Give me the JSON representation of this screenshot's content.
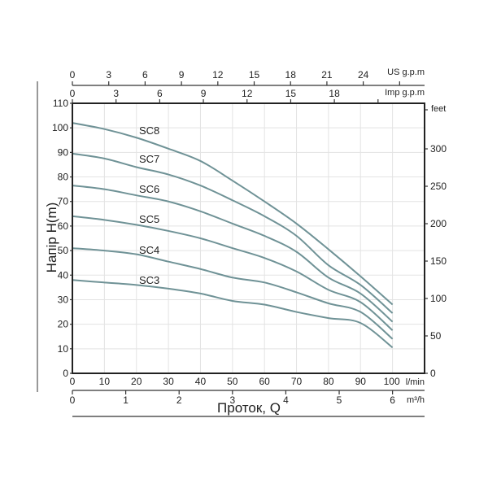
{
  "chart_data": {
    "type": "line",
    "title": "",
    "xlabel": "Проток, Q",
    "ylabel": "Напір H(m)",
    "xlim": [
      0,
      110
    ],
    "ylim": [
      0,
      110
    ],
    "grid": true,
    "legend_position": "inline labels",
    "x_unit": "l/min",
    "x": [
      0,
      10,
      20,
      30,
      40,
      50,
      60,
      70,
      80,
      90,
      100
    ],
    "series": [
      {
        "name": "SC8",
        "values": [
          102,
          99.5,
          96,
          91.5,
          86.5,
          78.5,
          70,
          61,
          50.5,
          39.5,
          28
        ]
      },
      {
        "name": "SC7",
        "values": [
          89.5,
          87.5,
          84,
          81,
          76.5,
          70.5,
          64,
          56,
          44,
          36,
          24.5
        ]
      },
      {
        "name": "SC6",
        "values": [
          76.5,
          75,
          72.5,
          70,
          66,
          61,
          56,
          49.5,
          39,
          32.5,
          21
        ]
      },
      {
        "name": "SC5",
        "values": [
          64,
          62.5,
          60.5,
          58,
          55,
          51,
          47,
          41.5,
          34,
          29,
          17.5
        ]
      },
      {
        "name": "SC4",
        "values": [
          51,
          50,
          48.5,
          45.5,
          42.5,
          39,
          37,
          33,
          28.5,
          25,
          14
        ]
      },
      {
        "name": "SC3",
        "values": [
          38,
          37,
          36,
          34.5,
          32.5,
          29.5,
          28,
          25,
          22.5,
          20.5,
          10.5
        ]
      }
    ],
    "primary_y_axis": {
      "label": "Напір H(m)",
      "ticks": [
        0,
        10,
        20,
        30,
        40,
        50,
        60,
        70,
        80,
        90,
        100,
        110
      ]
    },
    "secondary_y_axis": {
      "unit": "feet",
      "ticks": [
        0,
        50,
        100,
        150,
        200,
        250,
        300
      ]
    },
    "primary_x_axis": {
      "unit": "l/min",
      "ticks": [
        0,
        10,
        20,
        30,
        40,
        50,
        60,
        70,
        80,
        90,
        100
      ]
    },
    "secondary_x_axes": [
      {
        "unit": "US g.p.m",
        "ticks": [
          0,
          3,
          6,
          9,
          12,
          15,
          18,
          21,
          24
        ]
      },
      {
        "unit": "Imp g.p.m",
        "ticks": [
          0,
          3,
          6,
          9,
          12,
          15,
          18
        ]
      },
      {
        "unit": "m³/h",
        "ticks": [
          0,
          1,
          2,
          3,
          4,
          5,
          6
        ]
      }
    ],
    "line_color": "#6f9296"
  },
  "labels": {
    "y_title": "Напір H(m)",
    "x_title": "Проток, Q",
    "unit_lmin": "l/min",
    "unit_m3h": "m³/h",
    "unit_us": "US g.p.m",
    "unit_imp": "Imp g.p.m",
    "unit_feet": "feet"
  }
}
